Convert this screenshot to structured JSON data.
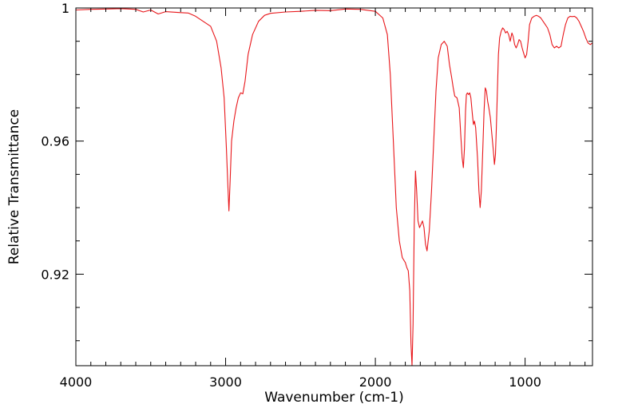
{
  "chart_data": {
    "type": "line",
    "title": "",
    "xlabel": "Wavenumber (cm-1)",
    "ylabel": "Relative Transmittance",
    "xlim": [
      4000,
      550
    ],
    "ylim": [
      0.8925,
      1.0
    ],
    "x_reversed": true,
    "x_ticks": [
      {
        "value": 4000,
        "label": "4000"
      },
      {
        "value": 3000,
        "label": "3000"
      },
      {
        "value": 2000,
        "label": "2000"
      },
      {
        "value": 1000,
        "label": "1000"
      }
    ],
    "y_ticks": [
      {
        "value": 0.92,
        "label": "0.92"
      },
      {
        "value": 0.96,
        "label": "0.96"
      },
      {
        "value": 1.0,
        "label": "1"
      }
    ],
    "grid": false,
    "legend": "none",
    "series": [
      {
        "color": "#e8161a",
        "points": [
          [
            4000,
            0.9994
          ],
          [
            3900,
            0.9996
          ],
          [
            3800,
            0.9997
          ],
          [
            3700,
            0.9998
          ],
          [
            3600,
            0.9996
          ],
          [
            3550,
            0.9988
          ],
          [
            3500,
            0.9994
          ],
          [
            3450,
            0.9982
          ],
          [
            3400,
            0.9989
          ],
          [
            3300,
            0.9986
          ],
          [
            3250,
            0.9985
          ],
          [
            3200,
            0.9975
          ],
          [
            3150,
            0.996
          ],
          [
            3100,
            0.9945
          ],
          [
            3060,
            0.99
          ],
          [
            3030,
            0.982
          ],
          [
            3010,
            0.973
          ],
          [
            2995,
            0.958
          ],
          [
            2985,
            0.947
          ],
          [
            2978,
            0.939
          ],
          [
            2970,
            0.948
          ],
          [
            2960,
            0.96
          ],
          [
            2945,
            0.966
          ],
          [
            2930,
            0.97
          ],
          [
            2915,
            0.973
          ],
          [
            2900,
            0.9745
          ],
          [
            2885,
            0.9742
          ],
          [
            2870,
            0.978
          ],
          [
            2850,
            0.986
          ],
          [
            2820,
            0.992
          ],
          [
            2780,
            0.996
          ],
          [
            2740,
            0.9978
          ],
          [
            2700,
            0.9984
          ],
          [
            2600,
            0.9988
          ],
          [
            2500,
            0.999
          ],
          [
            2400,
            0.9993
          ],
          [
            2300,
            0.9992
          ],
          [
            2200,
            0.9997
          ],
          [
            2100,
            0.9996
          ],
          [
            2000,
            0.999
          ],
          [
            1950,
            0.997
          ],
          [
            1920,
            0.992
          ],
          [
            1900,
            0.98
          ],
          [
            1880,
            0.96
          ],
          [
            1860,
            0.94
          ],
          [
            1840,
            0.93
          ],
          [
            1820,
            0.925
          ],
          [
            1800,
            0.9235
          ],
          [
            1790,
            0.922
          ],
          [
            1780,
            0.921
          ],
          [
            1770,
            0.915
          ],
          [
            1762,
            0.899
          ],
          [
            1755,
            0.8925
          ],
          [
            1748,
            0.905
          ],
          [
            1740,
            0.935
          ],
          [
            1732,
            0.951
          ],
          [
            1724,
            0.945
          ],
          [
            1715,
            0.936
          ],
          [
            1705,
            0.934
          ],
          [
            1695,
            0.935
          ],
          [
            1685,
            0.936
          ],
          [
            1675,
            0.934
          ],
          [
            1665,
            0.929
          ],
          [
            1655,
            0.927
          ],
          [
            1640,
            0.933
          ],
          [
            1625,
            0.945
          ],
          [
            1610,
            0.96
          ],
          [
            1595,
            0.975
          ],
          [
            1580,
            0.985
          ],
          [
            1560,
            0.989
          ],
          [
            1540,
            0.99
          ],
          [
            1520,
            0.9885
          ],
          [
            1505,
            0.983
          ],
          [
            1490,
            0.979
          ],
          [
            1480,
            0.976
          ],
          [
            1470,
            0.9735
          ],
          [
            1455,
            0.973
          ],
          [
            1440,
            0.97
          ],
          [
            1430,
            0.962
          ],
          [
            1420,
            0.955
          ],
          [
            1412,
            0.952
          ],
          [
            1405,
            0.958
          ],
          [
            1398,
            0.969
          ],
          [
            1392,
            0.974
          ],
          [
            1385,
            0.9745
          ],
          [
            1378,
            0.974
          ],
          [
            1370,
            0.9745
          ],
          [
            1362,
            0.973
          ],
          [
            1352,
            0.968
          ],
          [
            1345,
            0.965
          ],
          [
            1338,
            0.966
          ],
          [
            1330,
            0.964
          ],
          [
            1318,
            0.955
          ],
          [
            1308,
            0.945
          ],
          [
            1300,
            0.94
          ],
          [
            1292,
            0.945
          ],
          [
            1282,
            0.958
          ],
          [
            1274,
            0.969
          ],
          [
            1266,
            0.976
          ],
          [
            1258,
            0.975
          ],
          [
            1250,
            0.972
          ],
          [
            1242,
            0.97
          ],
          [
            1232,
            0.967
          ],
          [
            1222,
            0.962
          ],
          [
            1212,
            0.957
          ],
          [
            1205,
            0.953
          ],
          [
            1198,
            0.956
          ],
          [
            1192,
            0.964
          ],
          [
            1185,
            0.975
          ],
          [
            1178,
            0.986
          ],
          [
            1170,
            0.991
          ],
          [
            1160,
            0.993
          ],
          [
            1150,
            0.994
          ],
          [
            1140,
            0.9935
          ],
          [
            1130,
            0.9925
          ],
          [
            1120,
            0.993
          ],
          [
            1110,
            0.992
          ],
          [
            1100,
            0.99
          ],
          [
            1095,
            0.991
          ],
          [
            1088,
            0.9925
          ],
          [
            1080,
            0.9915
          ],
          [
            1070,
            0.989
          ],
          [
            1060,
            0.988
          ],
          [
            1050,
            0.989
          ],
          [
            1040,
            0.9905
          ],
          [
            1030,
            0.99
          ],
          [
            1020,
            0.988
          ],
          [
            1010,
            0.9865
          ],
          [
            1000,
            0.985
          ],
          [
            990,
            0.986
          ],
          [
            980,
            0.99
          ],
          [
            970,
            0.995
          ],
          [
            955,
            0.997
          ],
          [
            940,
            0.9975
          ],
          [
            925,
            0.9978
          ],
          [
            910,
            0.9975
          ],
          [
            895,
            0.997
          ],
          [
            880,
            0.996
          ],
          [
            865,
            0.995
          ],
          [
            850,
            0.994
          ],
          [
            835,
            0.992
          ],
          [
            820,
            0.989
          ],
          [
            805,
            0.988
          ],
          [
            790,
            0.9885
          ],
          [
            775,
            0.988
          ],
          [
            760,
            0.9885
          ],
          [
            745,
            0.992
          ],
          [
            730,
            0.995
          ],
          [
            715,
            0.997
          ],
          [
            700,
            0.9975
          ],
          [
            685,
            0.9974
          ],
          [
            670,
            0.9975
          ],
          [
            655,
            0.997
          ],
          [
            640,
            0.996
          ],
          [
            625,
            0.9945
          ],
          [
            610,
            0.993
          ],
          [
            595,
            0.991
          ],
          [
            580,
            0.9895
          ],
          [
            565,
            0.989
          ],
          [
            550,
            0.9895
          ]
        ]
      }
    ]
  }
}
